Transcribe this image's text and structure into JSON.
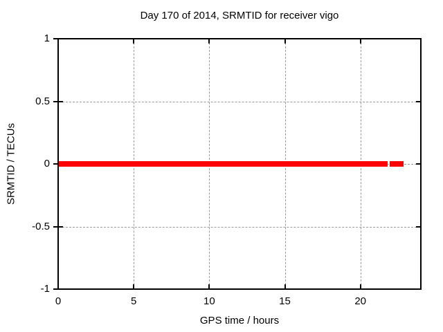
{
  "figure": {
    "background": "#ffffff"
  },
  "chart_data": {
    "type": "line",
    "title": "Day 170 of 2014, SRMTID for receiver vigo",
    "xlabel": "GPS time / hours",
    "ylabel": "SRMTID / TECUs",
    "xlim": [
      0,
      24
    ],
    "ylim": [
      -1,
      1
    ],
    "xticks": [
      0,
      5,
      10,
      15,
      20
    ],
    "xtick_labels": [
      "0",
      "5",
      "10",
      "15",
      "20"
    ],
    "yticks": [
      1,
      0.5,
      0,
      -0.5,
      -1
    ],
    "ytick_labels": [
      "1",
      "0.5",
      "0",
      "-0.5",
      "-1"
    ],
    "grid": true,
    "grid_color": "#999999",
    "border_color": "#000000",
    "series": [
      {
        "name": "SRMTID",
        "color": "#ff0000",
        "y_value": 0,
        "segments_hours": [
          [
            0.0,
            21.8
          ],
          [
            21.93,
            22.86
          ]
        ]
      }
    ]
  }
}
